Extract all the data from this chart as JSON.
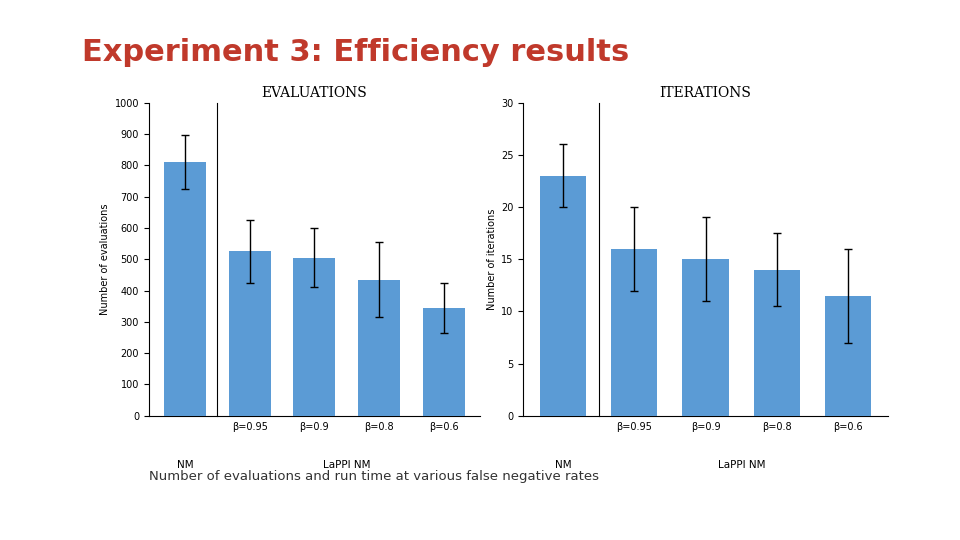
{
  "title": "Experiment 3: Efficiency results",
  "title_color": "#C0392B",
  "subtitle": "Number of evaluations and run time at various false negative rates",
  "subtitle_color": "#333333",
  "background_color": "#FFFFFF",
  "left_sidebar_color": "#9E9E9E",
  "right_sidebar_color": "#C0392B",
  "eval_title": "Evaluations",
  "eval_ylabel": "Number of evaluations",
  "eval_categories": [
    "NM",
    "β=0.95",
    "β=0.9",
    "β=0.8",
    "β=0.6"
  ],
  "eval_values": [
    810,
    525,
    505,
    435,
    345
  ],
  "eval_errors": [
    85,
    100,
    95,
    120,
    80
  ],
  "eval_ylim": [
    0,
    1000
  ],
  "eval_yticks": [
    0,
    100,
    200,
    300,
    400,
    500,
    600,
    700,
    800,
    900,
    1000
  ],
  "eval_bar_color": "#5B9BD5",
  "iter_title": "Iterations",
  "iter_ylabel": "Number of iterations",
  "iter_categories": [
    "NM",
    "β=0.95",
    "β=0.9",
    "β=0.8",
    "β=0.6"
  ],
  "iter_values": [
    23,
    16,
    15,
    14,
    11.5
  ],
  "iter_errors": [
    3,
    4,
    4,
    3.5,
    4.5
  ],
  "iter_ylim": [
    0,
    30
  ],
  "iter_yticks": [
    0,
    5,
    10,
    15,
    20,
    25,
    30
  ],
  "iter_bar_color": "#5B9BD5"
}
